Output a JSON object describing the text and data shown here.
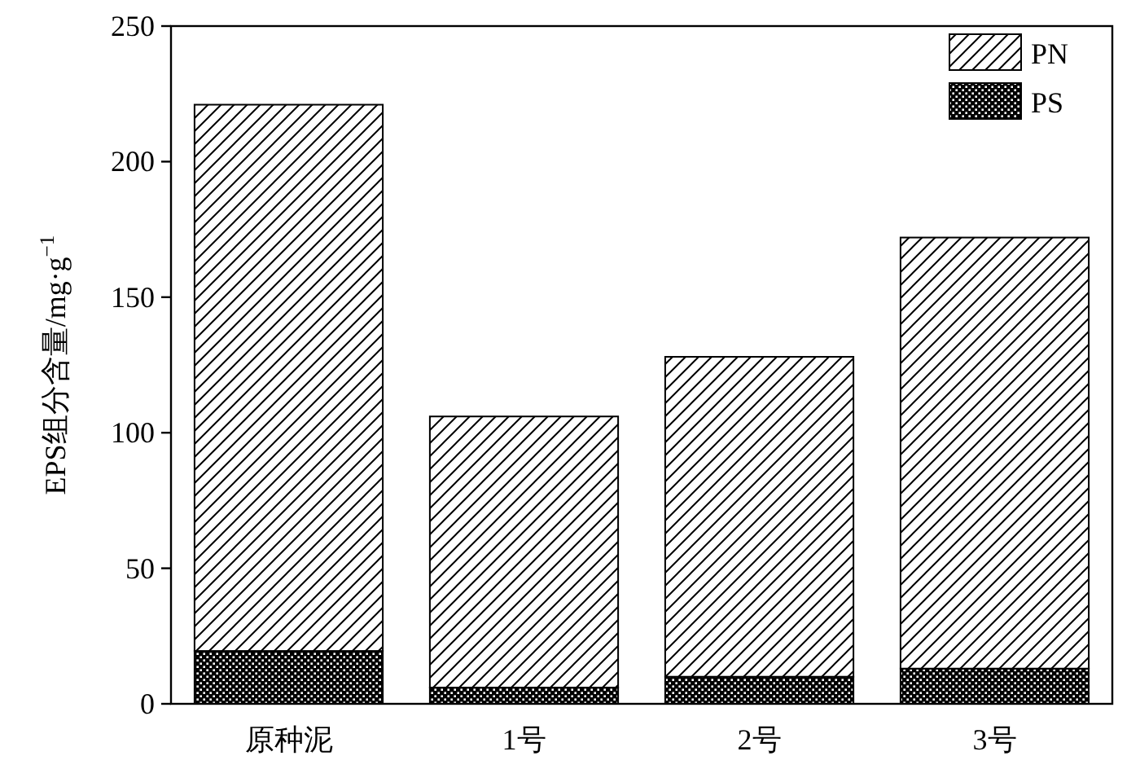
{
  "chart_data": {
    "type": "bar",
    "stacked": true,
    "categories": [
      "原种泥",
      "1号",
      "2号",
      "3号"
    ],
    "ylabel": "EPS组分含量/mg·g$^{−1}$",
    "ylim": [
      0,
      250
    ],
    "yticks": [
      0,
      50,
      100,
      150,
      200,
      250
    ],
    "legend": "top right",
    "grid": false,
    "series": [
      {
        "name": "PS",
        "color": "#000000",
        "values": [
          19.5,
          6,
          10,
          13
        ]
      },
      {
        "name": "PN",
        "color": "#000000",
        "values": [
          201.5,
          100,
          118,
          159
        ]
      }
    ]
  }
}
